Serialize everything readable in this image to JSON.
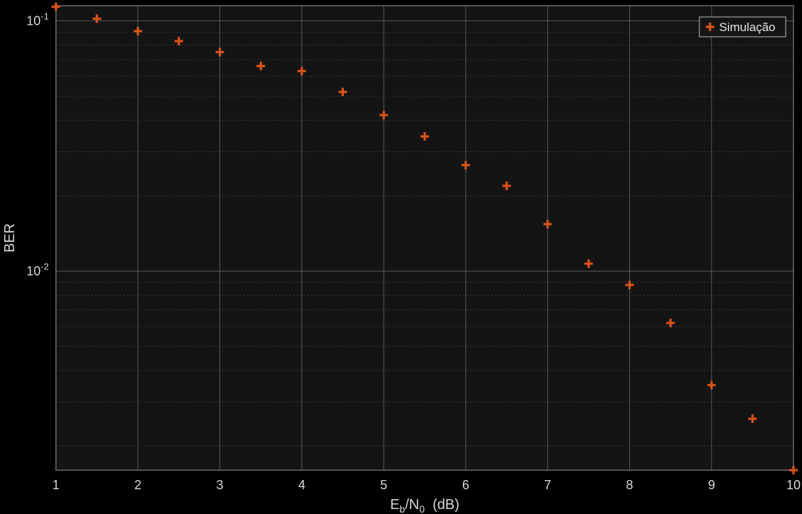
{
  "chart_data": {
    "type": "scatter",
    "title": "",
    "xlabel_main": "E",
    "xlabel_sub1": "b",
    "xlabel_mid": "/N",
    "xlabel_sub2": "0",
    "xlabel_tail": "  (dB)",
    "ylabel": "BER",
    "xlim": [
      1,
      10
    ],
    "ylim": [
      0.0016,
      0.115
    ],
    "yscale": "log",
    "grid": true,
    "minor_grid": true,
    "legend_position": "top-right",
    "x_ticks": [
      "1",
      "2",
      "3",
      "4",
      "5",
      "6",
      "7",
      "8",
      "9",
      "10"
    ],
    "y_ticks": [
      {
        "value": 0.1,
        "base": "10",
        "exp": "-1"
      },
      {
        "value": 0.01,
        "base": "10",
        "exp": "-2"
      }
    ],
    "series": [
      {
        "name": "Simulação",
        "color": "#d95319",
        "marker": "plus",
        "x": [
          1,
          1.5,
          2,
          2.5,
          3,
          3.5,
          4,
          4.5,
          5,
          5.5,
          6,
          6.5,
          7,
          7.5,
          8,
          8.5,
          9,
          9.5,
          10
        ],
        "y": [
          0.114,
          0.102,
          0.091,
          0.083,
          0.075,
          0.066,
          0.063,
          0.052,
          0.042,
          0.0345,
          0.0265,
          0.0219,
          0.0154,
          0.0107,
          0.0088,
          0.0062,
          0.0035,
          0.00257,
          0.0016
        ]
      }
    ]
  },
  "colors": {
    "figure_background": "#000000",
    "axes_background": "#141414",
    "grid_major": "#5a5a5a",
    "grid_minor": "#3c3c3c",
    "text": "#d9d9d9"
  }
}
